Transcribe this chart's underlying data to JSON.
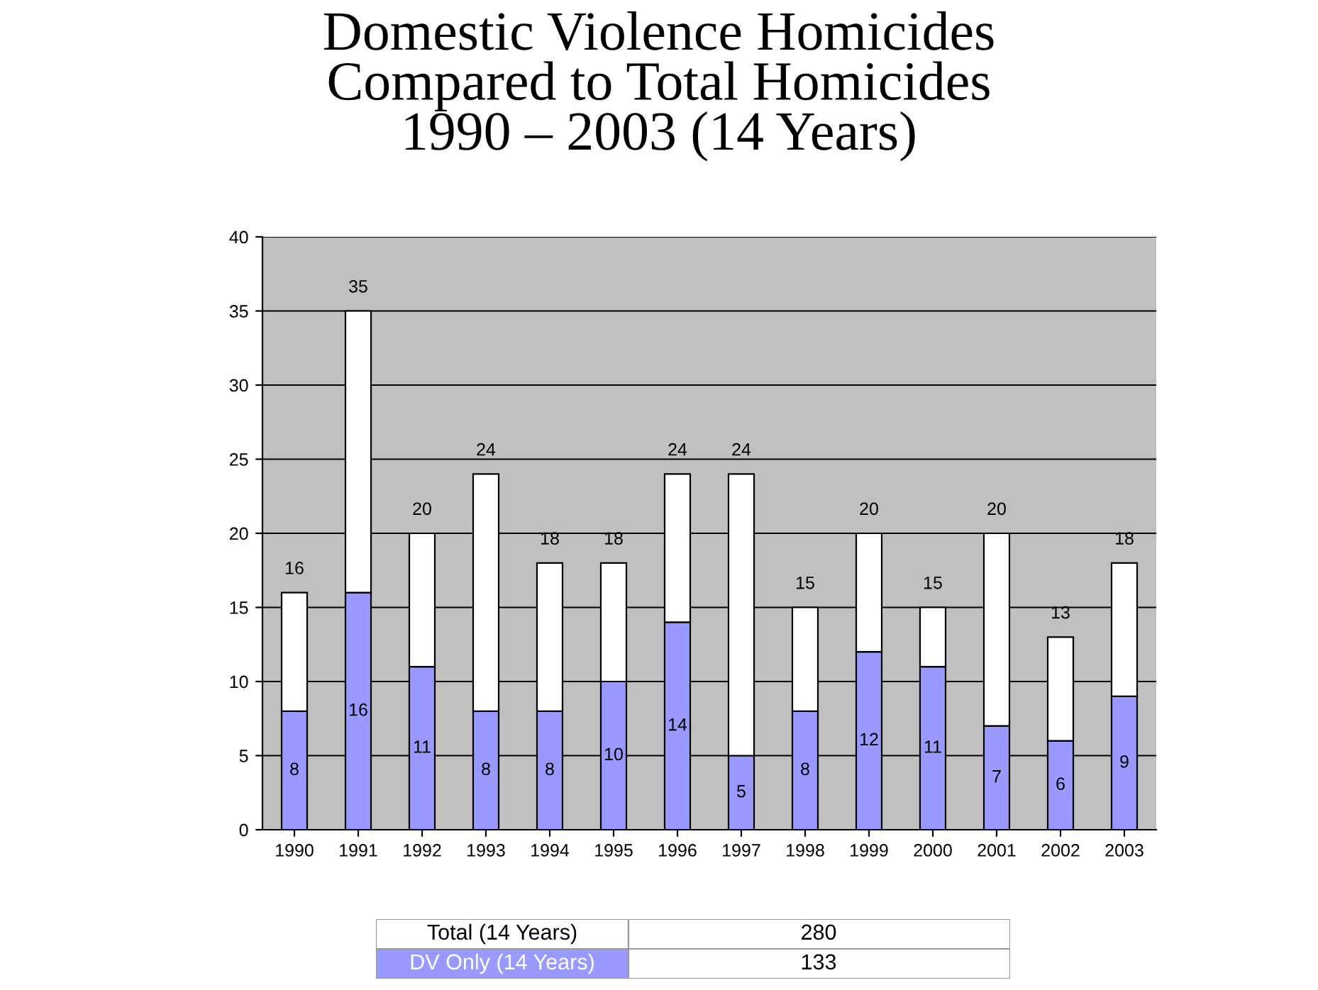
{
  "chart_data": {
    "type": "bar",
    "title": "Domestic Violence Homicides\nCompared to Total Homicides\n1990 – 2003 (14 Years)",
    "categories": [
      "1990",
      "1991",
      "1992",
      "1993",
      "1994",
      "1995",
      "1996",
      "1997",
      "1998",
      "1999",
      "2000",
      "2001",
      "2002",
      "2003"
    ],
    "stacked": true,
    "series": [
      {
        "color": "#9999ff",
        "values": [
          8,
          16,
          11,
          8,
          8,
          10,
          14,
          5,
          8,
          12,
          11,
          7,
          6,
          9
        ],
        "value_labels": [
          "8",
          "16",
          "11",
          "8",
          "8",
          "10",
          "14",
          "5",
          "8",
          "12",
          "11",
          "7",
          "6",
          "9"
        ]
      },
      {
        "color": "#ffffff",
        "values": [
          8,
          19,
          9,
          16,
          10,
          8,
          10,
          19,
          7,
          8,
          4,
          13,
          7,
          9
        ]
      }
    ],
    "totals": [
      "16",
      "35",
      "20",
      "24",
      "18",
      "18",
      "24",
      "24",
      "15",
      "20",
      "15",
      "20",
      "13",
      "18"
    ],
    "ylim": [
      0,
      40
    ],
    "yticks": [
      0,
      5,
      10,
      15,
      20,
      25,
      30,
      35,
      40
    ],
    "grid": "y",
    "annotations": [
      "Total (14 Years)",
      "280",
      "DV Only (14 Years)",
      "133"
    ]
  }
}
